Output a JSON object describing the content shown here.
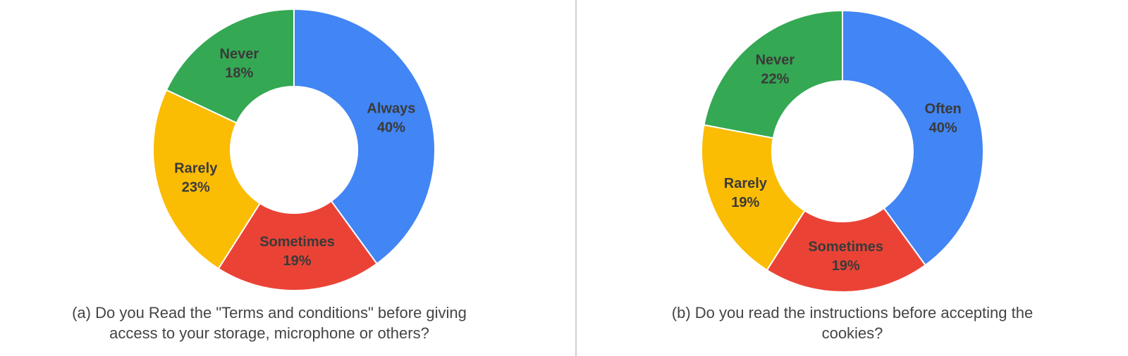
{
  "chart_data": [
    {
      "type": "pie",
      "title": [
        "(a) Do you Read the \"Terms and conditions\" before giving",
        "access to your storage, microphone or others?"
      ],
      "categories": [
        "Always",
        "Sometimes",
        "Rarely",
        "Never"
      ],
      "values": [
        40,
        19,
        23,
        18
      ],
      "value_labels": [
        "40%",
        "19%",
        "23%",
        "18%"
      ],
      "colors": [
        "#4285f4",
        "#ea4335",
        "#fbbc04",
        "#34a853"
      ]
    },
    {
      "type": "pie",
      "title": [
        "(b) Do you read the instructions before accepting the",
        "cookies?"
      ],
      "categories": [
        "Often",
        "Sometimes",
        "Rarely",
        "Never"
      ],
      "values": [
        40,
        19,
        19,
        22
      ],
      "value_labels": [
        "40%",
        "19%",
        "19%",
        "22%"
      ],
      "colors": [
        "#4285f4",
        "#ea4335",
        "#fbbc04",
        "#34a853"
      ]
    }
  ]
}
